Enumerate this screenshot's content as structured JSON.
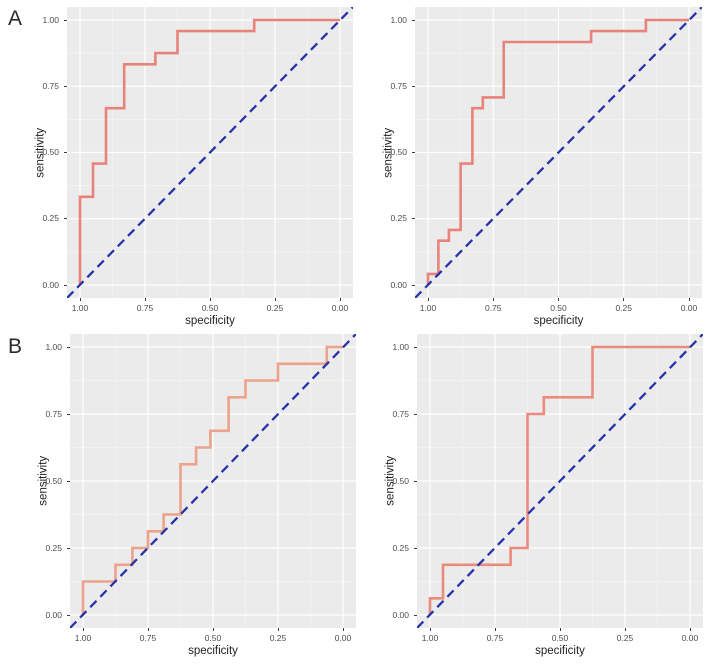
{
  "figure": {
    "row_labels": [
      {
        "id": "row-a",
        "text": "A"
      },
      {
        "id": "row-b",
        "text": "B"
      }
    ],
    "background": "#ffffff"
  },
  "style": {
    "panel_bg": "#ebebeb",
    "grid_major": "#ffffff",
    "grid_minor": "#f4f4f4",
    "diagonal_color": "#2733a8",
    "tick_text_color": "#4d4d4d",
    "axis_title_color": "#1f1f1f"
  },
  "chart_data": [
    {
      "id": "roc-a-left",
      "type": "line",
      "subtype": "roc-step",
      "row": "A",
      "position": "left",
      "xlabel": "specificity",
      "ylabel": "sensitivity",
      "x_ticks": [
        "1.00",
        "0.75",
        "0.50",
        "0.25",
        "0.00"
      ],
      "y_ticks": [
        "1.00",
        "0.75",
        "0.50",
        "0.25",
        "0.00"
      ],
      "xlim": [
        1.0,
        0.0
      ],
      "ylim": [
        0.0,
        1.0
      ],
      "x_axis_reversed": true,
      "grid": true,
      "diagonal_reference": true,
      "curve_color": "#e8837b",
      "series": [
        {
          "name": "ROC curve",
          "points_spec_sens": [
            [
              1.0,
              0.0
            ],
            [
              1.0,
              0.333
            ],
            [
              0.95,
              0.333
            ],
            [
              0.95,
              0.458
            ],
            [
              0.9,
              0.458
            ],
            [
              0.9,
              0.667
            ],
            [
              0.83,
              0.667
            ],
            [
              0.83,
              0.833
            ],
            [
              0.71,
              0.833
            ],
            [
              0.71,
              0.875
            ],
            [
              0.625,
              0.875
            ],
            [
              0.625,
              0.958
            ],
            [
              0.33,
              0.958
            ],
            [
              0.33,
              1.0
            ],
            [
              0.0,
              1.0
            ]
          ]
        }
      ]
    },
    {
      "id": "roc-a-right",
      "type": "line",
      "subtype": "roc-step",
      "row": "A",
      "position": "right",
      "xlabel": "specificity",
      "ylabel": "sensitivity",
      "x_ticks": [
        "1.00",
        "0.75",
        "0.50",
        "0.25",
        "0.00"
      ],
      "y_ticks": [
        "1.00",
        "0.75",
        "0.50",
        "0.25",
        "0.00"
      ],
      "xlim": [
        1.0,
        0.0
      ],
      "ylim": [
        0.0,
        1.0
      ],
      "x_axis_reversed": true,
      "grid": true,
      "diagonal_reference": true,
      "curve_color": "#e8837b",
      "series": [
        {
          "name": "ROC curve",
          "points_spec_sens": [
            [
              1.0,
              0.0
            ],
            [
              1.0,
              0.042
            ],
            [
              0.96,
              0.042
            ],
            [
              0.96,
              0.167
            ],
            [
              0.92,
              0.167
            ],
            [
              0.92,
              0.208
            ],
            [
              0.875,
              0.208
            ],
            [
              0.875,
              0.458
            ],
            [
              0.83,
              0.458
            ],
            [
              0.83,
              0.667
            ],
            [
              0.79,
              0.667
            ],
            [
              0.79,
              0.708
            ],
            [
              0.71,
              0.708
            ],
            [
              0.71,
              0.917
            ],
            [
              0.375,
              0.917
            ],
            [
              0.375,
              0.958
            ],
            [
              0.165,
              0.958
            ],
            [
              0.165,
              1.0
            ],
            [
              0.0,
              1.0
            ]
          ]
        }
      ]
    },
    {
      "id": "roc-b-left",
      "type": "line",
      "subtype": "roc-step",
      "row": "B",
      "position": "left",
      "xlabel": "specificity",
      "ylabel": "sensitivity",
      "x_ticks": [
        "1.00",
        "0.75",
        "0.50",
        "0.25",
        "0.00"
      ],
      "y_ticks": [
        "1.00",
        "0.75",
        "0.50",
        "0.25",
        "0.00"
      ],
      "xlim": [
        1.0,
        0.0
      ],
      "ylim": [
        0.0,
        1.0
      ],
      "x_axis_reversed": true,
      "grid": true,
      "diagonal_reference": true,
      "curve_color": "#eda28b",
      "series": [
        {
          "name": "ROC curve",
          "points_spec_sens": [
            [
              1.0,
              0.0
            ],
            [
              1.0,
              0.125
            ],
            [
              0.875,
              0.125
            ],
            [
              0.875,
              0.1875
            ],
            [
              0.81,
              0.1875
            ],
            [
              0.81,
              0.25
            ],
            [
              0.75,
              0.25
            ],
            [
              0.75,
              0.3125
            ],
            [
              0.69,
              0.3125
            ],
            [
              0.69,
              0.375
            ],
            [
              0.625,
              0.375
            ],
            [
              0.625,
              0.5625
            ],
            [
              0.565,
              0.5625
            ],
            [
              0.565,
              0.625
            ],
            [
              0.51,
              0.625
            ],
            [
              0.51,
              0.6875
            ],
            [
              0.44,
              0.6875
            ],
            [
              0.44,
              0.8125
            ],
            [
              0.375,
              0.8125
            ],
            [
              0.375,
              0.875
            ],
            [
              0.25,
              0.875
            ],
            [
              0.25,
              0.9375
            ],
            [
              0.0625,
              0.9375
            ],
            [
              0.0625,
              1.0
            ],
            [
              0.0,
              1.0
            ]
          ]
        }
      ]
    },
    {
      "id": "roc-b-right",
      "type": "line",
      "subtype": "roc-step",
      "row": "B",
      "position": "right",
      "xlabel": "specificity",
      "ylabel": "sensitivity",
      "x_ticks": [
        "1.00",
        "0.75",
        "0.50",
        "0.25",
        "0.00"
      ],
      "y_ticks": [
        "1.00",
        "0.75",
        "0.50",
        "0.25",
        "0.00"
      ],
      "xlim": [
        1.0,
        0.0
      ],
      "ylim": [
        0.0,
        1.0
      ],
      "x_axis_reversed": true,
      "grid": true,
      "diagonal_reference": true,
      "curve_color": "#ea8b7e",
      "series": [
        {
          "name": "ROC curve",
          "points_spec_sens": [
            [
              1.0,
              0.0
            ],
            [
              1.0,
              0.0625
            ],
            [
              0.95,
              0.0625
            ],
            [
              0.95,
              0.1875
            ],
            [
              0.69,
              0.1875
            ],
            [
              0.69,
              0.25
            ],
            [
              0.625,
              0.25
            ],
            [
              0.625,
              0.75
            ],
            [
              0.5625,
              0.75
            ],
            [
              0.5625,
              0.8125
            ],
            [
              0.375,
              0.8125
            ],
            [
              0.375,
              1.0
            ],
            [
              0.0,
              1.0
            ]
          ]
        }
      ]
    }
  ]
}
